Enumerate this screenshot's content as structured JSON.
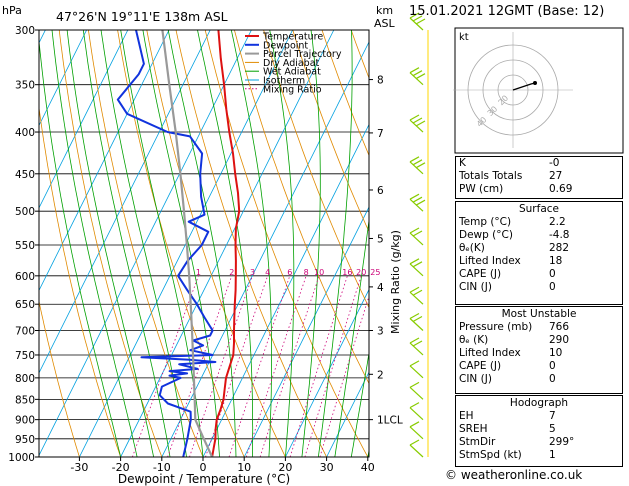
{
  "header": {
    "location": "47°26'N  19°11'E  138m  ASL",
    "pressure_unit": "hPa",
    "height_unit_top": "km",
    "height_unit_bottom": "ASL",
    "time": "15.01.2021  12GMT  (Base: 12)"
  },
  "chart_data": {
    "type": "line",
    "title": "47°26'N  19°11'E  138m  ASL",
    "xlabel": "Dewpoint / Temperature (°C)",
    "ylabel": "hPa",
    "right_label": "Mixing Ratio (g/kg)",
    "xlim": [
      -40,
      40
    ],
    "ylim": [
      1000,
      300
    ],
    "x_ticks": [
      "-30",
      "-20",
      "-10",
      "0",
      "10",
      "20",
      "30",
      "40"
    ],
    "x_tick_values": [
      -30,
      -20,
      -10,
      0,
      10,
      20,
      30,
      40
    ],
    "pressure_ticks": [
      "300",
      "350",
      "400",
      "450",
      "500",
      "550",
      "600",
      "650",
      "700",
      "750",
      "800",
      "850",
      "900",
      "950",
      "1000"
    ],
    "pressure_values": [
      300,
      350,
      400,
      450,
      500,
      550,
      600,
      650,
      700,
      750,
      800,
      850,
      900,
      950,
      1000
    ],
    "km_ticks": [
      {
        "label": "8",
        "p": 345
      },
      {
        "label": "7",
        "p": 401
      },
      {
        "label": "6",
        "p": 471
      },
      {
        "label": "5",
        "p": 540
      },
      {
        "label": "4",
        "p": 619
      },
      {
        "label": "3",
        "p": 700
      },
      {
        "label": "2",
        "p": 792
      },
      {
        "label": "1LCL",
        "p": 900
      }
    ],
    "mixing_ratio_labels": [
      "1",
      "2",
      "3",
      "4",
      "6",
      "8",
      "10",
      "16",
      "20",
      "25"
    ],
    "mixing_ratio_values": [
      1,
      2,
      3,
      4,
      6,
      8,
      10,
      16,
      20,
      25
    ],
    "legend": [
      "Temperature",
      "Dewpoint",
      "Parcel Trajectory",
      "Dry Adiabat",
      "Wet Adiabat",
      "Isotherm",
      "Mixing Ratio"
    ],
    "series": [
      {
        "name": "Temperature",
        "color": "#dd1111",
        "points": [
          [
            1000,
            2.2
          ],
          [
            975,
            1.5
          ],
          [
            950,
            0.8
          ],
          [
            925,
            -0.3
          ],
          [
            900,
            -1.2
          ],
          [
            875,
            -1.5
          ],
          [
            850,
            -2.0
          ],
          [
            825,
            -3.0
          ],
          [
            800,
            -4.0
          ],
          [
            775,
            -4.5
          ],
          [
            750,
            -5.0
          ],
          [
            725,
            -6.3
          ],
          [
            700,
            -7.8
          ],
          [
            675,
            -9.3
          ],
          [
            650,
            -10.8
          ],
          [
            625,
            -12.3
          ],
          [
            600,
            -14.0
          ],
          [
            575,
            -15.8
          ],
          [
            550,
            -17.8
          ],
          [
            525,
            -19.7
          ],
          [
            500,
            -21.0
          ],
          [
            475,
            -23.5
          ],
          [
            450,
            -26.5
          ],
          [
            425,
            -29.5
          ],
          [
            400,
            -33.0
          ],
          [
            375,
            -36.5
          ],
          [
            350,
            -40.0
          ],
          [
            325,
            -44.0
          ],
          [
            300,
            -48.0
          ]
        ]
      },
      {
        "name": "Dewpoint",
        "color": "#1133dd",
        "points": [
          [
            1000,
            -4.8
          ],
          [
            950,
            -6.0
          ],
          [
            900,
            -7.5
          ],
          [
            880,
            -8.5
          ],
          [
            860,
            -15.0
          ],
          [
            840,
            -18.0
          ],
          [
            820,
            -18.5
          ],
          [
            800,
            -15.0
          ],
          [
            795,
            -18.0
          ],
          [
            790,
            -14.0
          ],
          [
            785,
            -18.5
          ],
          [
            780,
            -12.0
          ],
          [
            770,
            -17.0
          ],
          [
            765,
            -8.5
          ],
          [
            760,
            -15.0
          ],
          [
            755,
            -27.0
          ],
          [
            750,
            -10.0
          ],
          [
            740,
            -16.0
          ],
          [
            730,
            -13.5
          ],
          [
            720,
            -16.5
          ],
          [
            710,
            -13.0
          ],
          [
            700,
            -13.0
          ],
          [
            675,
            -16.5
          ],
          [
            650,
            -20.0
          ],
          [
            625,
            -24.0
          ],
          [
            600,
            -28.0
          ],
          [
            575,
            -27.5
          ],
          [
            550,
            -26.0
          ],
          [
            530,
            -26.0
          ],
          [
            515,
            -32.0
          ],
          [
            505,
            -29.0
          ],
          [
            480,
            -32.0
          ],
          [
            450,
            -35.0
          ],
          [
            425,
            -37.0
          ],
          [
            405,
            -42.0
          ],
          [
            400,
            -48.0
          ],
          [
            380,
            -60.0
          ],
          [
            365,
            -64.0
          ],
          [
            340,
            -62.0
          ],
          [
            330,
            -62.0
          ],
          [
            300,
            -68.0
          ]
        ]
      },
      {
        "name": "Parcel Trajectory",
        "color": "#999999",
        "points": [
          [
            1000,
            2.2
          ],
          [
            950,
            -2.0
          ],
          [
            900,
            -6.4
          ],
          [
            850,
            -9.0
          ],
          [
            800,
            -11.8
          ],
          [
            750,
            -14.8
          ],
          [
            700,
            -18.0
          ],
          [
            650,
            -21.5
          ],
          [
            600,
            -25.3
          ],
          [
            550,
            -29.6
          ],
          [
            500,
            -34.4
          ],
          [
            450,
            -39.8
          ],
          [
            400,
            -46.0
          ],
          [
            350,
            -53.3
          ],
          [
            300,
            -61.6
          ]
        ]
      }
    ]
  },
  "hodograph": {
    "label": "kt",
    "ring_labels": [
      "40",
      "30",
      "20"
    ]
  },
  "indices": [
    {
      "label": "K",
      "value": "-0"
    },
    {
      "label": "Totals Totals",
      "value": "27"
    },
    {
      "label": "PW (cm)",
      "value": "0.69"
    }
  ],
  "surface": {
    "title": "Surface",
    "rows": [
      {
        "label": "Temp (°C)",
        "value": "2.2"
      },
      {
        "label": "Dewp (°C)",
        "value": "-4.8"
      },
      {
        "label": "θₑ(K)",
        "value": "282"
      },
      {
        "label": "Lifted Index",
        "value": "18"
      },
      {
        "label": "CAPE (J)",
        "value": "0"
      },
      {
        "label": "CIN (J)",
        "value": "0"
      }
    ]
  },
  "most_unstable": {
    "title": "Most Unstable",
    "rows": [
      {
        "label": "Pressure (mb)",
        "value": "766"
      },
      {
        "label": "θₑ (K)",
        "value": "290"
      },
      {
        "label": "Lifted Index",
        "value": "10"
      },
      {
        "label": "CAPE (J)",
        "value": "0"
      },
      {
        "label": "CIN (J)",
        "value": "0"
      }
    ]
  },
  "hodograph_table": {
    "title": "Hodograph",
    "rows": [
      {
        "label": "EH",
        "value": "7"
      },
      {
        "label": "SREH",
        "value": "5"
      },
      {
        "label": "StmDir",
        "value": "299°"
      },
      {
        "label": "StmSpd (kt)",
        "value": "1"
      }
    ]
  },
  "footer": "© weatheronline.co.uk",
  "colors": {
    "temperature": "#dd1111",
    "dewpoint": "#1133dd",
    "parcel": "#999999",
    "dry_adiabat": "#e08a00",
    "wet_adiabat": "#00a000",
    "isotherm": "#00a0e0",
    "mixing_ratio": "#cc0077",
    "wind": "#88cc00"
  }
}
